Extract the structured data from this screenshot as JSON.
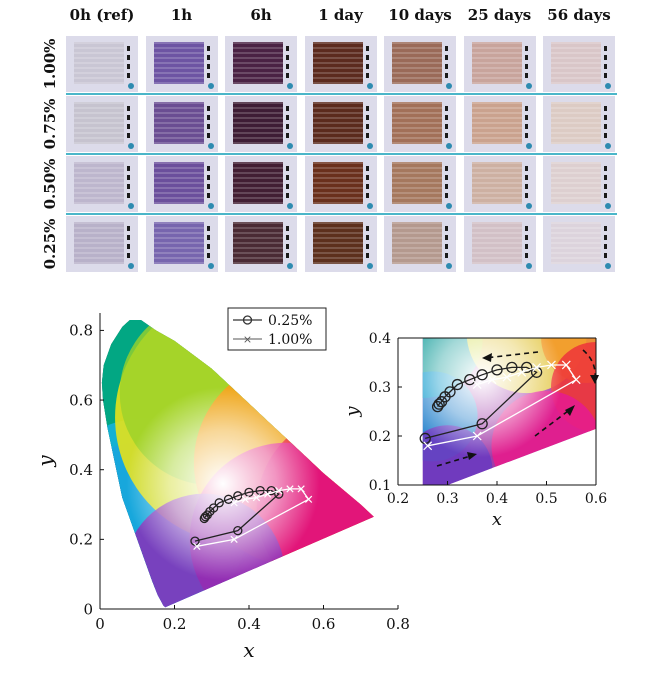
{
  "photo_grid": {
    "columns": [
      "0h (ref)",
      "1h",
      "6h",
      "1 day",
      "10 days",
      "25 days",
      "56 days"
    ],
    "rows": [
      "1.00%",
      "0.75%",
      "0.50%",
      "0.25%"
    ],
    "colors": [
      [
        "#c9c6d4",
        "#6d54a3",
        "#4a2244",
        "#5c2a1e",
        "#9a6a58",
        "#c8a49c",
        "#d9c6c8"
      ],
      [
        "#c6c3cf",
        "#6a4d92",
        "#3e1d35",
        "#5b2a1d",
        "#a27058",
        "#caa28e",
        "#dccbc4"
      ],
      [
        "#bdb6cd",
        "#6b4f9c",
        "#421e33",
        "#6a301c",
        "#a5785e",
        "#cdb0a2",
        "#ddcfd0"
      ],
      [
        "#b8b1c9",
        "#7765ae",
        "#4a2a34",
        "#5d301d",
        "#b4998e",
        "#d2c0c6",
        "#dcd3dc"
      ]
    ],
    "separator_color": "#4ab6c9"
  },
  "chart_data": [
    {
      "type": "scatter",
      "name": "main",
      "xlabel": "x",
      "ylabel": "y",
      "xlim": [
        0,
        0.8
      ],
      "ylim": [
        0,
        0.85
      ],
      "xticks": [
        "0",
        "0.2",
        "0.4",
        "0.6",
        "0.8"
      ],
      "yticks": [
        "0",
        "0.2",
        "0.4",
        "0.6",
        "0.8"
      ],
      "legend_position": "top-center",
      "series": [
        {
          "name": "0.25%",
          "marker": "circle",
          "x": [
            0.255,
            0.37,
            0.48,
            0.46,
            0.43,
            0.4,
            0.37,
            0.345,
            0.32,
            0.305,
            0.295,
            0.288,
            0.283,
            0.28
          ],
          "y": [
            0.195,
            0.225,
            0.33,
            0.34,
            0.34,
            0.335,
            0.325,
            0.315,
            0.305,
            0.29,
            0.28,
            0.27,
            0.265,
            0.26
          ]
        },
        {
          "name": "1.00%",
          "marker": "cross",
          "x": [
            0.26,
            0.36,
            0.56,
            0.54,
            0.51,
            0.48,
            0.45,
            0.42,
            0.39,
            0.36
          ],
          "y": [
            0.18,
            0.2,
            0.315,
            0.345,
            0.345,
            0.34,
            0.33,
            0.32,
            0.315,
            0.305
          ]
        }
      ]
    },
    {
      "type": "scatter",
      "name": "inset",
      "xlabel": "x",
      "ylabel": "y",
      "xlim": [
        0.2,
        0.6
      ],
      "ylim": [
        0.1,
        0.4
      ],
      "xticks": [
        "0.2",
        "0.3",
        "0.4",
        "0.5",
        "0.6"
      ],
      "yticks": [
        "0.1",
        "0.2",
        "0.3",
        "0.4"
      ]
    }
  ]
}
